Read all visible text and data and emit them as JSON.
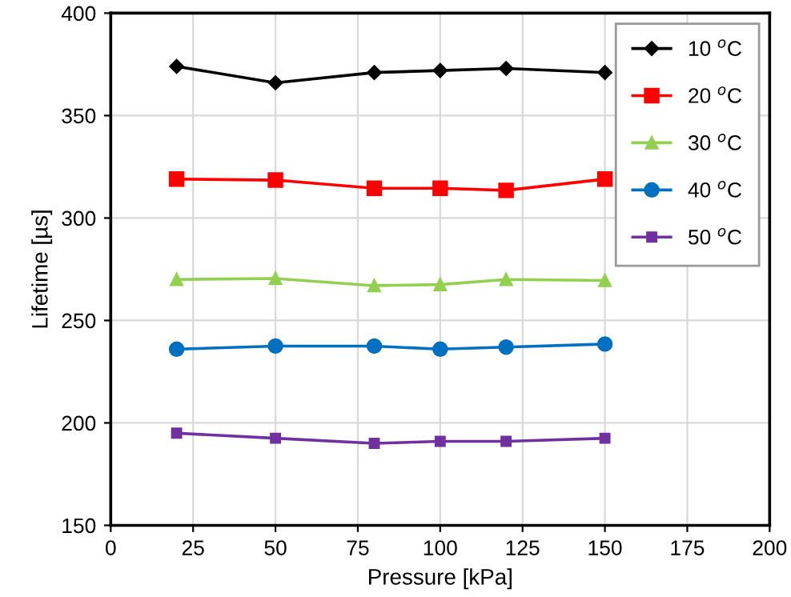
{
  "chart_data": {
    "type": "line",
    "xlabel": "Pressure [kPa]",
    "ylabel": "Lifetime [µs]",
    "x": [
      20,
      50,
      80,
      100,
      120,
      150
    ],
    "series": [
      {
        "name": "10 $^{o}$C",
        "color": "#000000",
        "marker": "diamond",
        "values": [
          374,
          366,
          371,
          372,
          373,
          371
        ]
      },
      {
        "name": "20 $^{o}$C",
        "color": "#ff0000",
        "marker": "square",
        "values": [
          319,
          318.5,
          314.5,
          314.5,
          313.5,
          319
        ]
      },
      {
        "name": "30 $^{o}$C",
        "color": "#92d050",
        "marker": "triangle",
        "values": [
          270,
          270.5,
          267,
          267.5,
          270,
          269.5
        ]
      },
      {
        "name": "40 $^{o}$C",
        "color": "#0070c0",
        "marker": "circle",
        "values": [
          236,
          237.5,
          237.5,
          236,
          237,
          238.5
        ]
      },
      {
        "name": "50 $^{o}$C",
        "color": "#7030a0",
        "marker": "square",
        "values": [
          195,
          192.5,
          190,
          191,
          191,
          192.5
        ]
      }
    ],
    "xlim": [
      0,
      200
    ],
    "xticks": [
      0,
      25,
      50,
      75,
      100,
      125,
      150,
      175,
      200
    ],
    "ylim": [
      150,
      400
    ],
    "yticks": [
      150,
      200,
      250,
      300,
      350,
      400
    ],
    "grid": true,
    "legend": "top right"
  }
}
